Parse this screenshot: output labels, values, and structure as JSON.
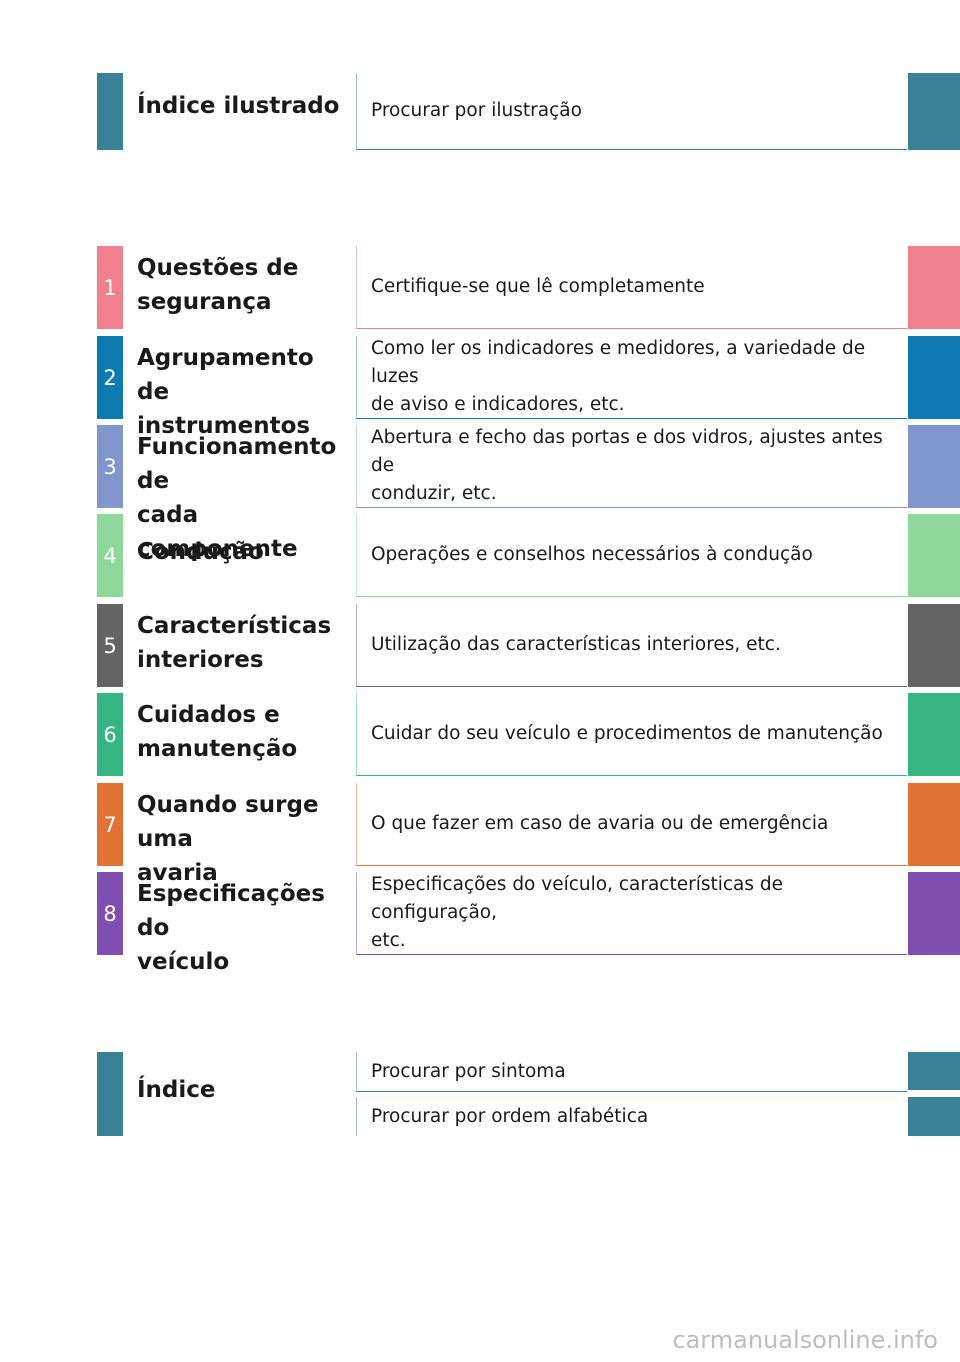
{
  "colors": {
    "teal": "#3a8096",
    "c1": "#f0808c",
    "c2": "#0d7ab0",
    "c3": "#8096cc",
    "c4": "#8dd899",
    "c5": "#646464",
    "c6": "#36b482",
    "c7": "#e07335",
    "c8": "#7e4fb0"
  },
  "illustrated_index": {
    "title": "Índice ilustrado",
    "description": "Procurar por ilustração"
  },
  "chapters": [
    {
      "number": "1",
      "title": "Questões de\nsegurança",
      "description": "Certifique-se que lê completamente"
    },
    {
      "number": "2",
      "title": "Agrupamento de\ninstrumentos",
      "description": "Como ler os indicadores e medidores, a variedade de luzes\nde aviso e indicadores, etc."
    },
    {
      "number": "3",
      "title": "Funcionamento de\ncada componente",
      "description": "Abertura e fecho das portas  e dos vidros, ajustes antes de\nconduzir, etc."
    },
    {
      "number": "4",
      "title": "Condução",
      "description": "Operações e conselhos necessários à condução"
    },
    {
      "number": "5",
      "title": "Características\ninteriores",
      "description": "Utilização das características interiores, etc."
    },
    {
      "number": "6",
      "title": "Cuidados e\nmanutenção",
      "description": "Cuidar do seu veículo e procedimentos de manutenção"
    },
    {
      "number": "7",
      "title": "Quando surge uma\navaria",
      "description": "O que fazer em caso de avaria ou de emergência"
    },
    {
      "number": "8",
      "title": "Especificações do\nveículo",
      "description": "Especificações do veículo, características de configuração,\netc."
    }
  ],
  "index": {
    "title": "Índice",
    "by_symptom": "Procurar por sintoma",
    "alphabetical": "Procurar por ordem alfabética"
  },
  "footer": {
    "watermark": "carmanualsonline.info"
  }
}
